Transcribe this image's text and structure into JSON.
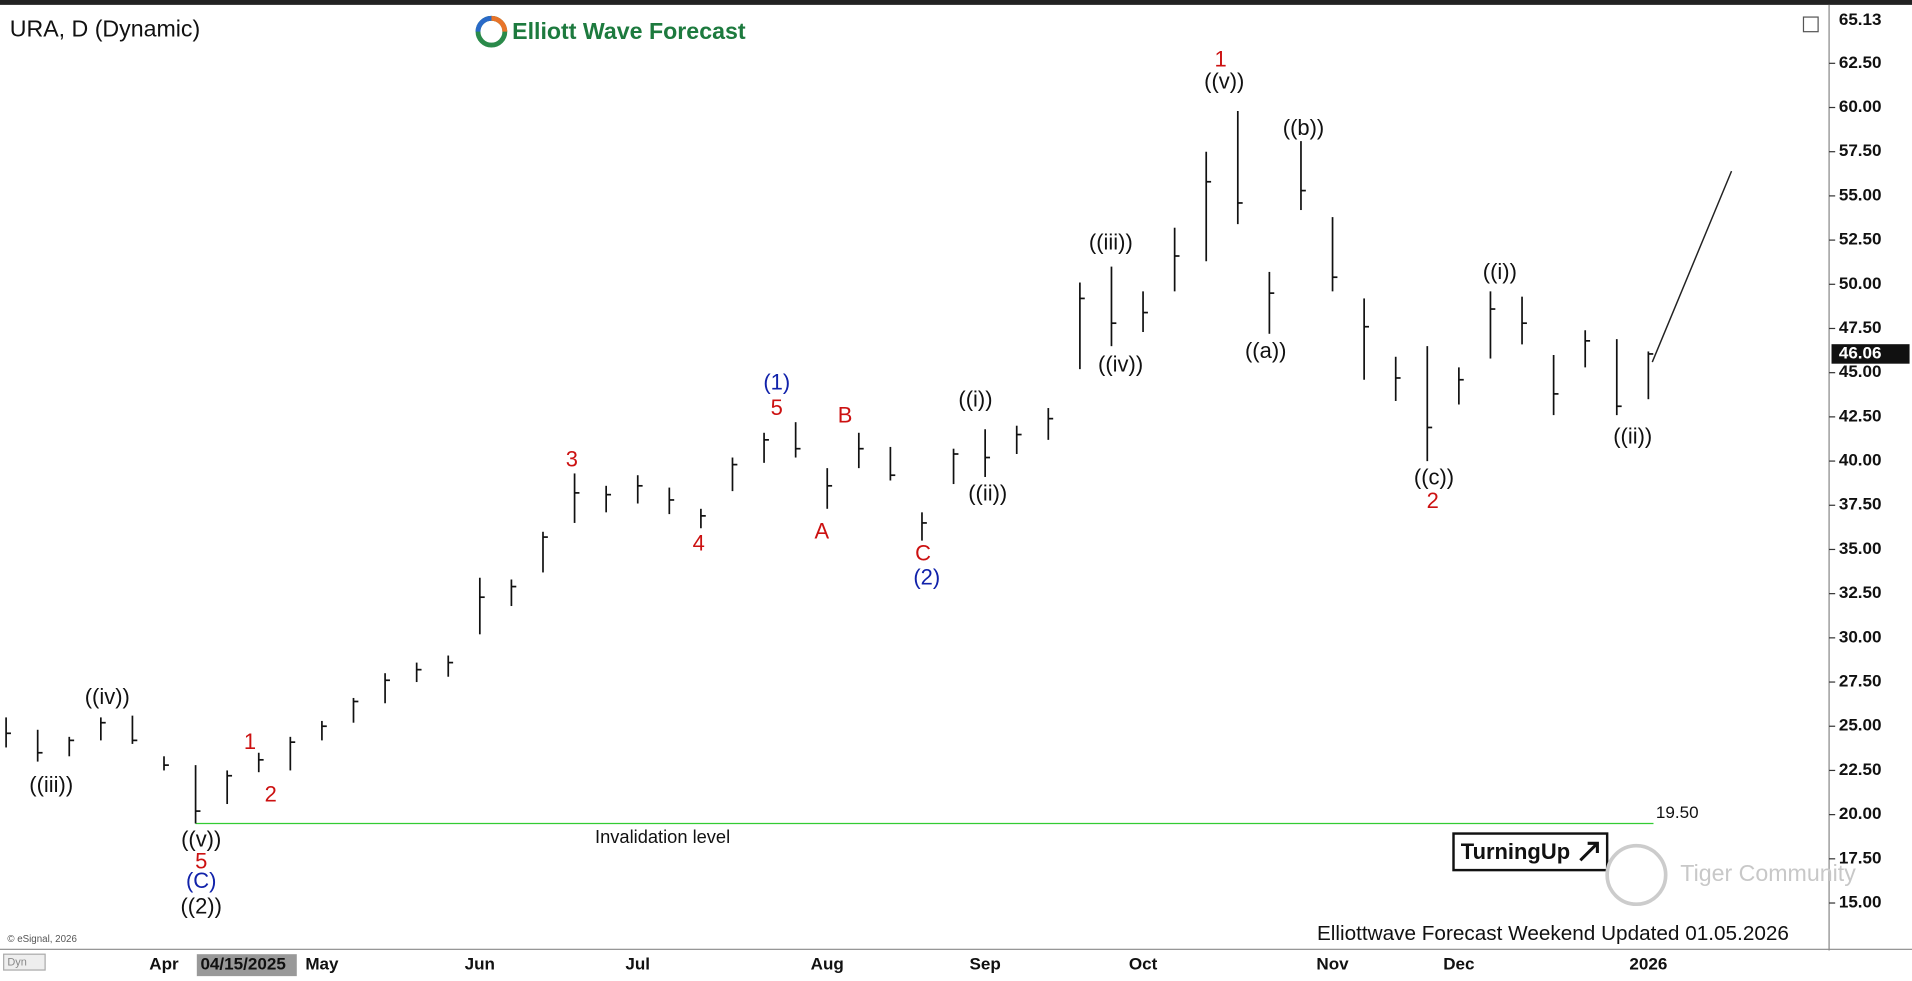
{
  "chart_data": {
    "type": "ohlc",
    "title": "URA, D (Dynamic)",
    "brand": "Elliott Wave Forecast",
    "categories": [
      null,
      null,
      null,
      null,
      null,
      "Apr",
      null,
      null,
      null,
      null,
      "May",
      null,
      null,
      null,
      null,
      "Jun",
      null,
      null,
      null,
      null,
      "Jul",
      null,
      null,
      null,
      null,
      null,
      "Aug",
      null,
      null,
      null,
      null,
      "Sep",
      null,
      null,
      null,
      null,
      "Oct",
      null,
      null,
      null,
      null,
      null,
      "Nov",
      null,
      null,
      null,
      "Dec",
      null,
      null,
      null,
      null,
      null,
      "2026",
      null,
      null,
      null,
      null,
      null
    ],
    "cursor_date": "04/15/2025",
    "series": [
      {
        "name": "High",
        "color": "#111111",
        "values": [
          25.5,
          24.8,
          24.4,
          25.5,
          25.6,
          23.3,
          22.8,
          22.5,
          23.5,
          24.4,
          25.3,
          26.6,
          28,
          28.6,
          29,
          33.4,
          33.3,
          36,
          39.3,
          38.6,
          39.2,
          38.5,
          37.3,
          40.2,
          41.6,
          42.2,
          39.6,
          41.6,
          40.8,
          37.1,
          40.7,
          41.8,
          42,
          43,
          50.1,
          51,
          49.6,
          53.2,
          57.5,
          59.8,
          50.7,
          58.1,
          53.8,
          49.2,
          45.9,
          46.5,
          45.3,
          49.6,
          49.3,
          46,
          47.4,
          46.9,
          46.2,
          null,
          null,
          null,
          null,
          null
        ]
      },
      {
        "name": "Low",
        "color": "#111111",
        "values": [
          23.8,
          23,
          23.3,
          24.2,
          24,
          22.5,
          19.5,
          20.6,
          22.4,
          22.5,
          24.2,
          25.2,
          26.3,
          27.5,
          27.8,
          30.2,
          31.8,
          33.7,
          36.5,
          37.1,
          37.6,
          37,
          36.2,
          38.3,
          39.9,
          40.2,
          37.3,
          39.6,
          38.9,
          35.5,
          38.7,
          39.1,
          40.4,
          41.2,
          45.2,
          46.5,
          47.3,
          49.6,
          51.3,
          53.4,
          47.2,
          54.2,
          49.6,
          44.6,
          43.4,
          40,
          43.2,
          45.8,
          46.6,
          42.6,
          45.3,
          42.6,
          43.5,
          null,
          null,
          null,
          null,
          null
        ]
      },
      {
        "name": "Close",
        "color": "#111111",
        "values": [
          24.6,
          23.5,
          24.2,
          25.2,
          24.2,
          22.8,
          20.2,
          22.2,
          23.1,
          24.1,
          25,
          26.4,
          27.6,
          28.2,
          28.6,
          32.3,
          32.9,
          35.7,
          38.2,
          38.1,
          38.6,
          37.8,
          36.9,
          39.8,
          41.2,
          40.7,
          38.6,
          40.7,
          39.2,
          36.5,
          40.4,
          40.2,
          41.5,
          42.4,
          49.2,
          47.8,
          48.4,
          51.6,
          55.8,
          54.6,
          49.5,
          55.3,
          50.4,
          47.6,
          44.7,
          41.9,
          44.6,
          48.6,
          47.8,
          43.8,
          46.8,
          43.1,
          46.06,
          null,
          null,
          null,
          null,
          null
        ]
      }
    ],
    "ylim": [
      12.45,
      65.53
    ],
    "yticks": [
      {
        "value": 15,
        "label": "15.00"
      },
      {
        "value": 17.5,
        "label": "17.50"
      },
      {
        "value": 20,
        "label": "20.00"
      },
      {
        "value": 22.5,
        "label": "22.50"
      },
      {
        "value": 25,
        "label": "25.00"
      },
      {
        "value": 27.5,
        "label": "27.50"
      },
      {
        "value": 30,
        "label": "30.00"
      },
      {
        "value": 32.5,
        "label": "32.50"
      },
      {
        "value": 35,
        "label": "35.00"
      },
      {
        "value": 37.5,
        "label": "37.50"
      },
      {
        "value": 40,
        "label": "40.00"
      },
      {
        "value": 42.5,
        "label": "42.50"
      },
      {
        "value": 45,
        "label": "45.00"
      },
      {
        "value": 47.5,
        "label": "47.50"
      },
      {
        "value": 50,
        "label": "50.00"
      },
      {
        "value": 52.5,
        "label": "52.50"
      },
      {
        "value": 55,
        "label": "55.00"
      },
      {
        "value": 57.5,
        "label": "57.50"
      },
      {
        "value": 60,
        "label": "60.00"
      },
      {
        "value": 62.5,
        "label": "62.50"
      }
    ],
    "top_price": 65.13,
    "last_price": 46.06,
    "invalidation": {
      "value": 19.5,
      "label": "19.50"
    },
    "invalidation_text": "Invalidation level",
    "invalidation_color": "#33cc33",
    "projection": [
      45.6,
      56.4
    ],
    "annotations": [
      {
        "text": "((iii))",
        "color": "#111111"
      },
      {
        "text": "((iv))",
        "color": "#111111"
      },
      {
        "text": "((v))",
        "color": "#111111"
      },
      {
        "text": "5",
        "color": "#cc1111"
      },
      {
        "text": "(C)",
        "color": "#1122aa"
      },
      {
        "text": "((2))",
        "color": "#111111"
      },
      {
        "text": "1",
        "color": "#cc1111"
      },
      {
        "text": "2",
        "color": "#cc1111"
      },
      {
        "text": "3",
        "color": "#cc1111"
      },
      {
        "text": "4",
        "color": "#cc1111"
      },
      {
        "text": "(1)",
        "color": "#1122aa"
      },
      {
        "text": "5",
        "color": "#cc1111"
      },
      {
        "text": "A",
        "color": "#cc1111"
      },
      {
        "text": "B",
        "color": "#cc1111"
      },
      {
        "text": "C",
        "color": "#cc1111"
      },
      {
        "text": "(2)",
        "color": "#1122aa"
      },
      {
        "text": "((i))",
        "color": "#111111"
      },
      {
        "text": "((ii))",
        "color": "#111111"
      },
      {
        "text": "((iii))",
        "color": "#111111"
      },
      {
        "text": "((iv))",
        "color": "#111111"
      },
      {
        "text": "1",
        "color": "#cc1111"
      },
      {
        "text": "((v))",
        "color": "#111111"
      },
      {
        "text": "((a))",
        "color": "#111111"
      },
      {
        "text": "((b))",
        "color": "#111111"
      },
      {
        "text": "((c))",
        "color": "#111111"
      },
      {
        "text": "2",
        "color": "#cc1111"
      },
      {
        "text": "((i))",
        "color": "#111111"
      },
      {
        "text": "((ii))",
        "color": "#111111"
      }
    ],
    "badge": "TurningUp",
    "watermark": "Tiger Community",
    "footer": "Elliottwave Forecast Weekend Updated 01.05.2026",
    "copyright": "© eSignal, 2026",
    "corner": "Dyn"
  }
}
